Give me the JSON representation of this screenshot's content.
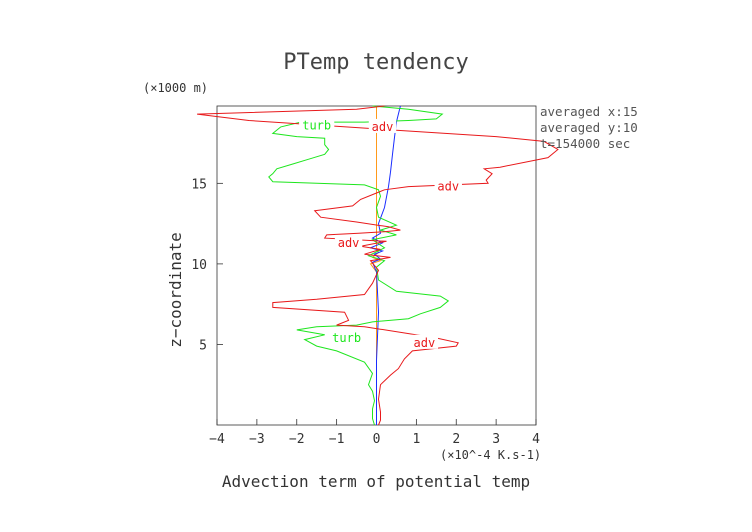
{
  "chart_data": {
    "type": "line",
    "title": "PTemp tendency",
    "xlabel": "Advection term of potential temp",
    "x_unit": "(×10⁻4 K.s−1)",
    "x_unit_text": "(×10^-4 K.s-1)",
    "ylabel": "z−coordinate",
    "y_unit": "(×1000 m)",
    "xlim": [
      -4,
      4
    ],
    "ylim": [
      0,
      19.8
    ],
    "xticks": [
      -4,
      -3,
      -2,
      -1,
      0,
      1,
      2,
      3,
      4
    ],
    "xtick_labels": [
      "−4",
      "−3",
      "−2",
      "−1",
      "0",
      "1",
      "2",
      "3",
      "4"
    ],
    "yticks": [
      5,
      10,
      15
    ],
    "ytick_labels": [
      "5",
      "10",
      "15"
    ],
    "annotations": [
      "averaged  x:15",
      "averaged  y:10",
      "t=154000 sec"
    ],
    "series": [
      {
        "name": "adv",
        "color": "#e8191b",
        "label_points": [
          [
            0.15,
            18.5
          ],
          [
            1.8,
            14.8
          ],
          [
            -0.7,
            11.3
          ],
          [
            1.2,
            5.1
          ]
        ],
        "points": [
          [
            0.05,
            0.0
          ],
          [
            0.1,
            0.3
          ],
          [
            0.1,
            0.8
          ],
          [
            0.05,
            1.6
          ],
          [
            0.1,
            2.5
          ],
          [
            0.35,
            3.1
          ],
          [
            0.55,
            3.5
          ],
          [
            0.7,
            4.1
          ],
          [
            0.9,
            4.6
          ],
          [
            2.0,
            4.9
          ],
          [
            2.05,
            5.1
          ],
          [
            1.5,
            5.4
          ],
          [
            -0.3,
            6.1
          ],
          [
            -1.0,
            6.2
          ],
          [
            -0.7,
            6.5
          ],
          [
            -0.8,
            7.0
          ],
          [
            -2.6,
            7.3
          ],
          [
            -2.6,
            7.6
          ],
          [
            -1.5,
            7.8
          ],
          [
            -0.3,
            8.1
          ],
          [
            -0.1,
            8.8
          ],
          [
            0.05,
            9.6
          ],
          [
            -0.15,
            10.2
          ],
          [
            0.35,
            10.4
          ],
          [
            -0.3,
            10.6
          ],
          [
            0.1,
            10.9
          ],
          [
            -0.4,
            11.1
          ],
          [
            0.25,
            11.4
          ],
          [
            -1.3,
            11.6
          ],
          [
            -1.25,
            11.8
          ],
          [
            -0.45,
            11.9
          ],
          [
            0.2,
            12.0
          ],
          [
            0.6,
            12.1
          ],
          [
            0.3,
            12.3
          ],
          [
            -0.5,
            12.6
          ],
          [
            -1.4,
            12.9
          ],
          [
            -1.55,
            13.3
          ],
          [
            -0.6,
            13.6
          ],
          [
            -0.4,
            14.0
          ],
          [
            -0.1,
            14.3
          ],
          [
            0.2,
            14.6
          ],
          [
            0.8,
            14.8
          ],
          [
            2.8,
            15.0
          ],
          [
            2.75,
            15.2
          ],
          [
            2.9,
            15.6
          ],
          [
            2.7,
            15.9
          ],
          [
            3.1,
            16.0
          ],
          [
            4.3,
            16.6
          ],
          [
            4.55,
            17.1
          ],
          [
            4.2,
            17.6
          ],
          [
            3.0,
            17.9
          ],
          [
            0.5,
            18.3
          ],
          [
            -3.2,
            18.9
          ],
          [
            -4.5,
            19.3
          ],
          [
            -0.5,
            19.6
          ],
          [
            0.2,
            19.8
          ]
        ]
      },
      {
        "name": "turb",
        "color": "#1ee61e",
        "label_points": [
          [
            -1.5,
            18.6
          ],
          [
            -0.75,
            5.4
          ]
        ],
        "points": [
          [
            -0.05,
            0.0
          ],
          [
            -0.1,
            0.4
          ],
          [
            -0.1,
            1.0
          ],
          [
            -0.05,
            1.5
          ],
          [
            -0.1,
            2.1
          ],
          [
            -0.2,
            2.5
          ],
          [
            -0.1,
            3.2
          ],
          [
            -0.3,
            3.9
          ],
          [
            -1.0,
            4.6
          ],
          [
            -1.5,
            4.9
          ],
          [
            -1.8,
            5.3
          ],
          [
            -1.3,
            5.6
          ],
          [
            -2.0,
            5.9
          ],
          [
            -1.5,
            6.1
          ],
          [
            -0.5,
            6.2
          ],
          [
            -0.1,
            6.4
          ],
          [
            0.8,
            6.6
          ],
          [
            1.1,
            6.9
          ],
          [
            1.6,
            7.3
          ],
          [
            1.8,
            7.7
          ],
          [
            1.6,
            8.0
          ],
          [
            0.5,
            8.3
          ],
          [
            0.05,
            9.0
          ],
          [
            0.0,
            9.8
          ],
          [
            0.2,
            10.2
          ],
          [
            -0.2,
            10.5
          ],
          [
            0.2,
            11.0
          ],
          [
            -0.1,
            11.5
          ],
          [
            0.5,
            11.8
          ],
          [
            0.1,
            12.1
          ],
          [
            0.5,
            12.4
          ],
          [
            0.05,
            12.9
          ],
          [
            0.0,
            13.5
          ],
          [
            0.1,
            14.2
          ],
          [
            0.05,
            14.6
          ],
          [
            -0.3,
            14.9
          ],
          [
            -2.6,
            15.1
          ],
          [
            -2.7,
            15.4
          ],
          [
            -2.6,
            15.6
          ],
          [
            -2.5,
            15.9
          ],
          [
            -2.1,
            16.2
          ],
          [
            -1.7,
            16.5
          ],
          [
            -1.3,
            16.8
          ],
          [
            -1.2,
            17.1
          ],
          [
            -1.3,
            17.4
          ],
          [
            -1.3,
            17.8
          ],
          [
            -2.0,
            17.9
          ],
          [
            -2.6,
            18.1
          ],
          [
            -2.4,
            18.5
          ],
          [
            -1.9,
            18.8
          ],
          [
            -0.3,
            18.8
          ],
          [
            0.8,
            18.9
          ],
          [
            1.5,
            19.0
          ],
          [
            1.65,
            19.3
          ],
          [
            0.8,
            19.6
          ],
          [
            -0.1,
            19.8
          ]
        ]
      },
      {
        "name": "blue",
        "color": "#1a2dff",
        "label_points": [],
        "points": [
          [
            0.0,
            0.0
          ],
          [
            0.0,
            4.0
          ],
          [
            0.05,
            7.0
          ],
          [
            0.0,
            9.5
          ],
          [
            -0.1,
            10.1
          ],
          [
            0.1,
            10.3
          ],
          [
            -0.05,
            10.6
          ],
          [
            0.15,
            10.8
          ],
          [
            -0.15,
            11.0
          ],
          [
            0.15,
            11.3
          ],
          [
            -0.1,
            11.6
          ],
          [
            0.1,
            11.9
          ],
          [
            0.05,
            12.5
          ],
          [
            0.2,
            13.5
          ],
          [
            0.3,
            14.8
          ],
          [
            0.35,
            15.7
          ],
          [
            0.4,
            16.8
          ],
          [
            0.45,
            17.8
          ],
          [
            0.5,
            18.8
          ],
          [
            0.6,
            19.8
          ]
        ]
      },
      {
        "name": "orange",
        "color": "#ff9a1a",
        "label_points": [],
        "points": [
          [
            0.0,
            0.0
          ],
          [
            0.0,
            9.5
          ],
          [
            -0.15,
            10.0
          ],
          [
            0.1,
            10.2
          ],
          [
            -0.1,
            10.4
          ],
          [
            0.05,
            10.7
          ],
          [
            0.0,
            11.0
          ],
          [
            0.0,
            19.8
          ]
        ]
      }
    ]
  }
}
